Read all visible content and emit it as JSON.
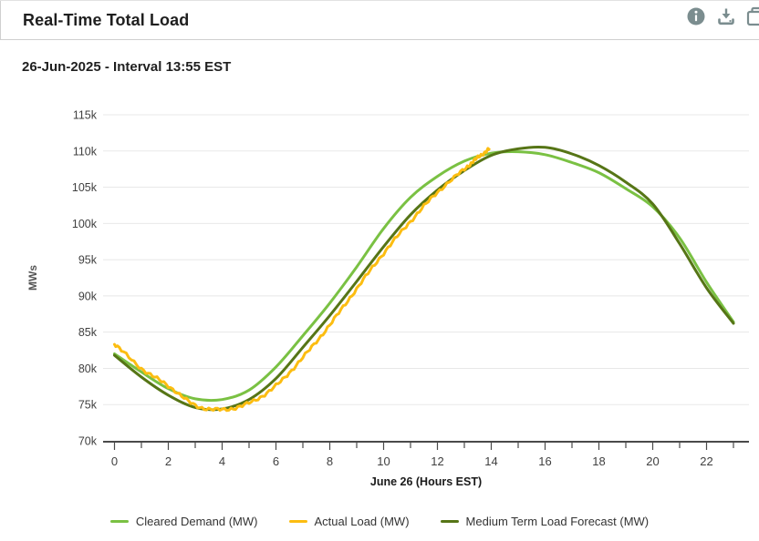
{
  "header": {
    "title": "Real-Time Total Load",
    "icon_color": "#7B8D8F",
    "icons": [
      {
        "name": "info-icon"
      },
      {
        "name": "download-icon"
      },
      {
        "name": "copy-icon"
      }
    ]
  },
  "subtitle": "26-Jun-2025 - Interval 13:55 EST",
  "chart_data": {
    "type": "line",
    "title": "",
    "xlabel": "June 26 (Hours EST)",
    "ylabel": "MWs",
    "y_unit": "thousand MW (k)",
    "ylim": [
      70,
      115
    ],
    "yticks": [
      70,
      75,
      80,
      85,
      90,
      95,
      100,
      105,
      110,
      115
    ],
    "ytick_suffix": "k",
    "xlim": [
      0,
      23.4
    ],
    "xticks_major": [
      0,
      2,
      4,
      6,
      8,
      10,
      12,
      14,
      16,
      18,
      20,
      22
    ],
    "xticks_minor_every": 1,
    "grid": "horizontal",
    "legend_position": "bottom",
    "series": [
      {
        "name": "Cleared Demand (MW)",
        "color": "#7AC143",
        "style": "smooth",
        "draw_order": 1,
        "x": [
          0,
          1,
          2,
          3,
          4,
          5,
          6,
          7,
          8,
          9,
          10,
          11,
          12,
          13,
          14,
          15,
          16,
          17,
          18,
          19,
          20,
          21,
          22,
          23
        ],
        "values": [
          82.0,
          79.5,
          77.2,
          75.8,
          75.7,
          77.0,
          80.2,
          84.5,
          89.0,
          94.0,
          99.3,
          103.6,
          106.5,
          108.6,
          109.7,
          109.9,
          109.5,
          108.4,
          107.0,
          104.8,
          102.3,
          98.0,
          91.9,
          86.4
        ]
      },
      {
        "name": "Actual Load (MW)",
        "color": "#FCBD11",
        "style": "jagged",
        "draw_order": 3,
        "x": [
          0,
          1,
          2,
          3,
          4,
          5,
          6,
          7,
          8,
          9,
          10,
          11,
          12,
          13,
          13.5,
          13.92
        ],
        "values": [
          83.4,
          80.0,
          77.6,
          74.9,
          74.3,
          75.2,
          77.6,
          81.5,
          86.0,
          91.0,
          95.9,
          100.3,
          104.3,
          107.5,
          109.1,
          110.25
        ]
      },
      {
        "name": "Medium Term Load Forecast (MW)",
        "color": "#567516",
        "style": "smooth",
        "draw_order": 2,
        "x": [
          0,
          1,
          2,
          3,
          4,
          5,
          6,
          7,
          8,
          9,
          10,
          11,
          12,
          13,
          14,
          15,
          16,
          17,
          18,
          19,
          20,
          21,
          22,
          23
        ],
        "values": [
          81.8,
          78.8,
          76.3,
          74.6,
          74.4,
          75.7,
          78.6,
          82.9,
          87.3,
          92.0,
          96.8,
          101.2,
          104.6,
          107.3,
          109.4,
          110.3,
          110.5,
          109.6,
          108.0,
          105.7,
          102.7,
          97.2,
          91.1,
          86.2
        ]
      }
    ]
  }
}
